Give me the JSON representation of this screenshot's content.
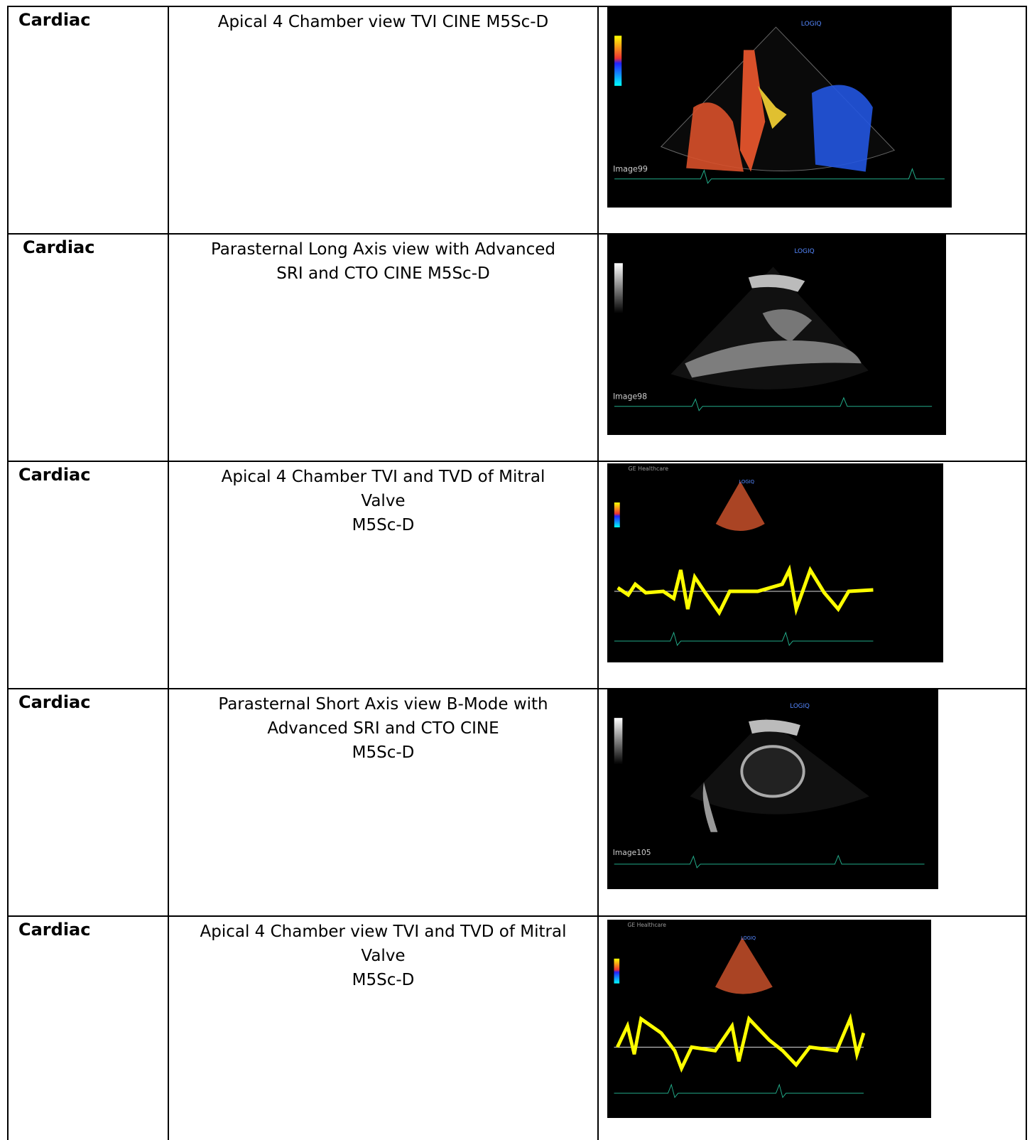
{
  "table": {
    "rows": [
      {
        "category": "Cardiac",
        "description": [
          "Apical 4 Chamber view TVI CINE M5Sc-D"
        ],
        "image": {
          "brand": "LOGIQ",
          "label": "Image99"
        }
      },
      {
        "category": "Cardiac",
        "description": [
          "Parasternal Long Axis view with Advanced",
          "SRI and CTO CINE M5Sc-D"
        ],
        "image": {
          "brand": "LOGIQ",
          "label": "Image98"
        }
      },
      {
        "category": "Cardiac",
        "description": [
          "Apical 4 Chamber TVI and TVD of Mitral",
          "Valve",
          "M5Sc-D"
        ],
        "image": {
          "brand": "LOGIQ",
          "label": "GE Healthcare"
        }
      },
      {
        "category": "Cardiac",
        "description": [
          "Parasternal Short Axis view B-Mode with",
          "Advanced SRI and CTO CINE",
          "M5Sc-D"
        ],
        "image": {
          "brand": "LOGIQ",
          "label": "Image105"
        }
      },
      {
        "category": "Cardiac",
        "description": [
          "Apical 4 Chamber view TVI and TVD of Mitral",
          "Valve",
          "M5Sc-D"
        ],
        "image": {
          "brand": "LOGIQ",
          "label": "GE Healthcare"
        }
      }
    ]
  }
}
